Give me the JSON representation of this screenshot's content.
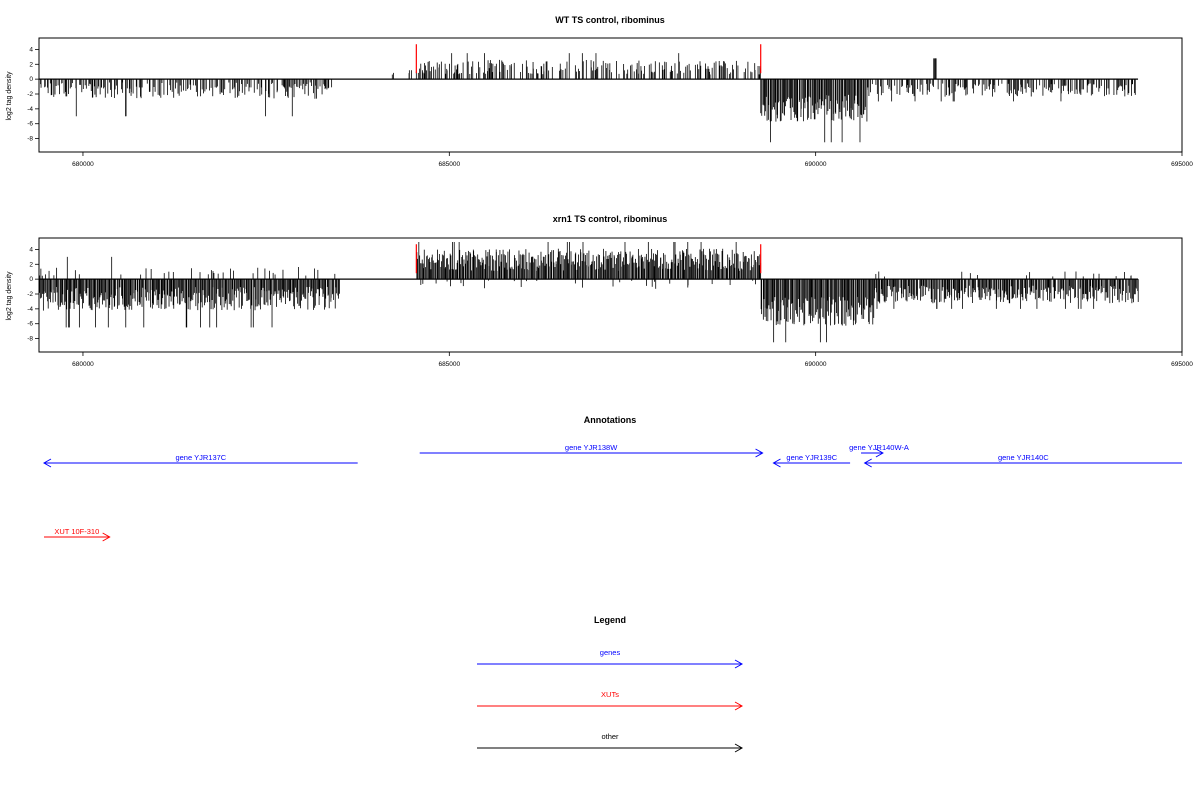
{
  "chart_data": [
    {
      "type": "bar",
      "title": "WT TS control, ribominus",
      "ylabel": "log2 tag density",
      "xlabel": "",
      "xlim": [
        679400,
        695000
      ],
      "ylim": [
        -9,
        5
      ],
      "xticks": [
        680000,
        685000,
        690000,
        695000
      ],
      "xtick_labels": [
        "680000",
        "685000",
        "690000",
        "695000"
      ],
      "yticks": [
        4,
        2,
        0,
        -2,
        -4,
        -6,
        -8
      ],
      "ytick_labels": [
        "4",
        "2",
        "0",
        "-2",
        "-4",
        "-6",
        "-8"
      ],
      "boundary_lines": [
        684550,
        689250
      ],
      "boundary_color": "#ff0000",
      "segments": [
        {
          "from": 679400,
          "to": 683400,
          "sign": -1,
          "mean": 1.1,
          "spread": 1.1,
          "peak": -5,
          "density": 0.6,
          "seed": 11
        },
        {
          "from": 684200,
          "to": 684550,
          "sign": 1,
          "mean": 0.6,
          "spread": 0.4,
          "peak": 1.2,
          "density": 0.3,
          "seed": 12
        },
        {
          "from": 684550,
          "to": 689250,
          "sign": 1,
          "mean": 1.2,
          "spread": 1.0,
          "peak": 3.5,
          "density": 0.55,
          "seed": 13
        },
        {
          "from": 689250,
          "to": 690700,
          "sign": -1,
          "mean": 3.2,
          "spread": 1.8,
          "peak": -8.5,
          "density": 1.0,
          "seed": 14
        },
        {
          "from": 690700,
          "to": 694400,
          "sign": -1,
          "mean": 1.1,
          "spread": 0.9,
          "peak": -3,
          "density": 0.55,
          "seed": 15
        },
        {
          "from": 691600,
          "to": 691650,
          "sign": 1,
          "mean": 2.8,
          "spread": 0.1,
          "peak": 2.8,
          "density": 0.5,
          "seed": 16
        }
      ]
    },
    {
      "type": "bar",
      "title": "xrn1 TS control, ribominus",
      "ylabel": "log2 tag density",
      "xlabel": "",
      "xlim": [
        679400,
        695000
      ],
      "ylim": [
        -9,
        5
      ],
      "xticks": [
        680000,
        685000,
        690000,
        695000
      ],
      "xtick_labels": [
        "680000",
        "685000",
        "690000",
        "695000"
      ],
      "yticks": [
        4,
        2,
        0,
        -2,
        -4,
        -6,
        -8
      ],
      "ytick_labels": [
        "4",
        "2",
        "0",
        "-2",
        "-4",
        "-6",
        "-8"
      ],
      "boundary_lines": [
        684550,
        689250
      ],
      "boundary_color": "#ff0000",
      "segments": [
        {
          "from": 679400,
          "to": 683500,
          "sign": -1,
          "mean": 2.0,
          "spread": 1.6,
          "peak": -6.5,
          "density": 1.0,
          "seed": 21
        },
        {
          "from": 679400,
          "to": 683500,
          "sign": 1,
          "mean": 0.8,
          "spread": 0.6,
          "peak": 3,
          "density": 0.12,
          "seed": 22
        },
        {
          "from": 684550,
          "to": 689250,
          "sign": 1,
          "mean": 2.0,
          "spread": 1.5,
          "peak": 5,
          "density": 1.0,
          "seed": 23
        },
        {
          "from": 684550,
          "to": 689250,
          "sign": -1,
          "mean": 0.5,
          "spread": 0.6,
          "peak": -2.5,
          "density": 0.08,
          "seed": 24
        },
        {
          "from": 689250,
          "to": 690800,
          "sign": -1,
          "mean": 3.5,
          "spread": 2.0,
          "peak": -8.5,
          "density": 1.0,
          "seed": 25
        },
        {
          "from": 690800,
          "to": 694400,
          "sign": -1,
          "mean": 1.6,
          "spread": 1.2,
          "peak": -4,
          "density": 0.9,
          "seed": 26
        },
        {
          "from": 690800,
          "to": 694400,
          "sign": 1,
          "mean": 0.5,
          "spread": 0.4,
          "peak": 1.8,
          "density": 0.06,
          "seed": 27
        }
      ]
    }
  ],
  "annotations": {
    "title": "Annotations",
    "features": [
      {
        "label": "gene YJR137C",
        "kind": "gene",
        "start": 679400,
        "end": 683700,
        "direction": "left",
        "row": 1
      },
      {
        "label": "gene YJR138W",
        "kind": "gene",
        "start": 684550,
        "end": 689250,
        "direction": "right",
        "row": 0
      },
      {
        "label": "gene YJR139C",
        "kind": "gene",
        "start": 689400,
        "end": 690450,
        "direction": "left",
        "row": 1
      },
      {
        "label": "gene YJR140W-A",
        "kind": "gene",
        "start": 690600,
        "end": 690900,
        "direction": "right",
        "row": 0
      },
      {
        "label": "gene YJR140C",
        "kind": "gene",
        "start": 690650,
        "end": 695000,
        "direction": "left",
        "row": 1
      },
      {
        "label": "XUT 10F-310",
        "kind": "xut",
        "start": 679400,
        "end": 680300,
        "direction": "right",
        "row": 2
      }
    ]
  },
  "legend": {
    "title": "Legend",
    "items": [
      {
        "label": "genes",
        "color": "#0000ff"
      },
      {
        "label": "XUTs",
        "color": "#ff0000"
      },
      {
        "label": "other",
        "color": "#000000"
      }
    ]
  },
  "colors": {
    "gene": "#0000ff",
    "xut": "#ff0000",
    "axis": "#000000"
  }
}
